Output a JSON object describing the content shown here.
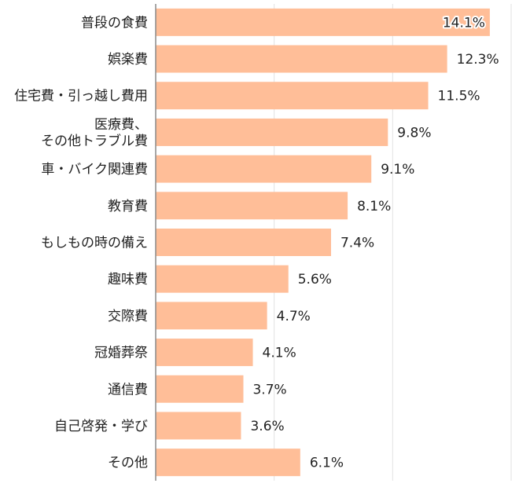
{
  "chart_data": {
    "type": "bar",
    "orientation": "horizontal",
    "categories": [
      "普段の食費",
      "娯楽費",
      "住宅費・引っ越し費用",
      "医療費、\nその他トラブル費",
      "車・バイク関連費",
      "教育費",
      "もしもの時の備え",
      "趣味費",
      "交際費",
      "冠婚葬祭",
      "通信費",
      "自己啓発・学び",
      "その他"
    ],
    "values": [
      14.1,
      12.3,
      11.5,
      9.8,
      9.1,
      8.1,
      7.4,
      5.6,
      4.7,
      4.1,
      3.7,
      3.6,
      6.1
    ],
    "value_labels": [
      "14.1%",
      "12.3%",
      "11.5%",
      "9.8%",
      "9.1%",
      "8.1%",
      "7.4%",
      "5.6%",
      "4.7%",
      "4.1%",
      "3.7%",
      "3.6%",
      "6.1%"
    ],
    "xlim": [
      0,
      15
    ],
    "x_gridlines": [
      5,
      10,
      15
    ],
    "grid": true,
    "bar_color": "#ffbe98",
    "grid_color": "#e2e2e2",
    "axis_color": "#8a8a8a",
    "text_color": "#222222"
  }
}
